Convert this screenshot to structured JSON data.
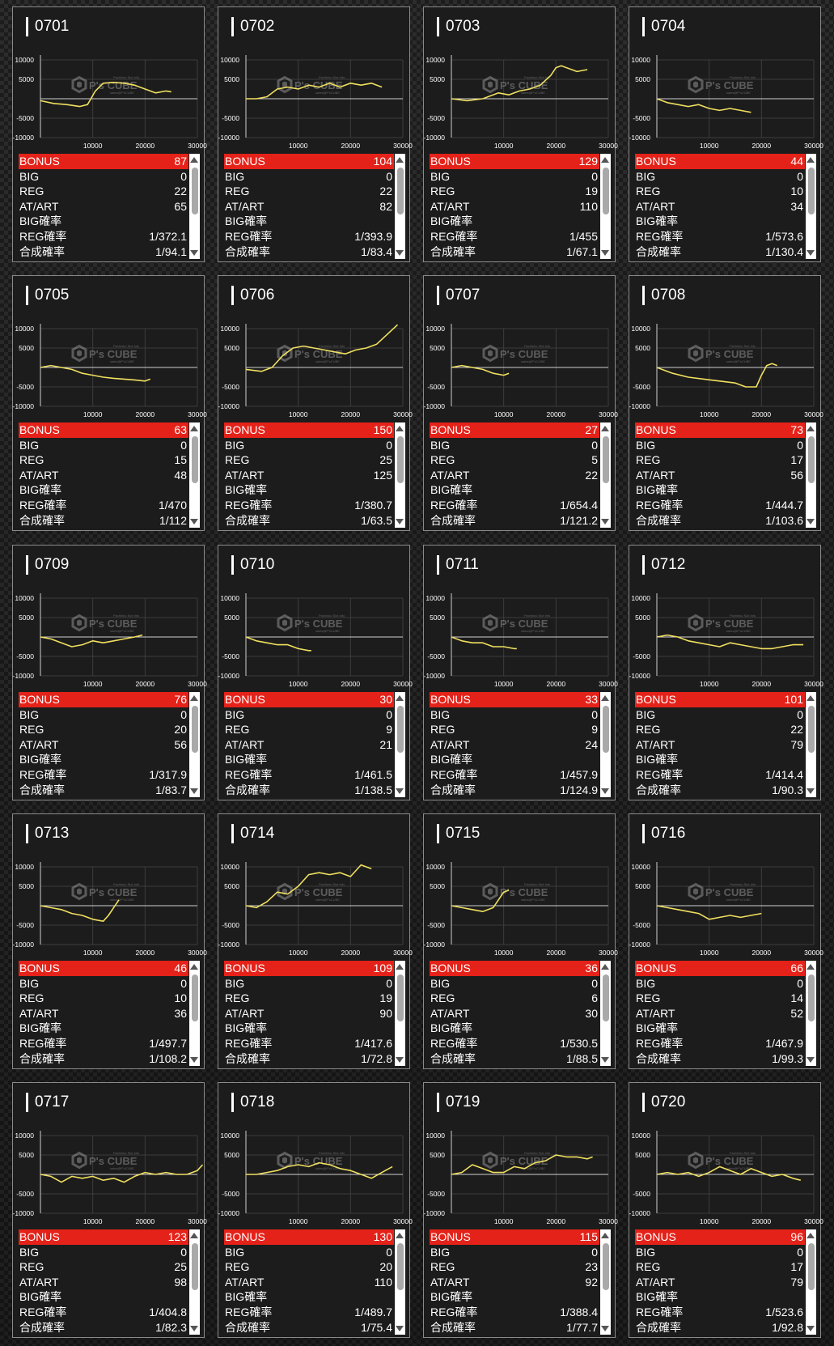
{
  "watermark": {
    "brand": "P's CUBE",
    "sub1": "Pachinko Slot Info",
    "sub2": "sales@P'sCUBE"
  },
  "labels": {
    "bonus": "BONUS",
    "big": "BIG",
    "reg": "REG",
    "at_art": "AT/ART",
    "big_rate": "BIG確率",
    "reg_rate": "REG確率",
    "combined_rate": "合成確率"
  },
  "chart_axes": {
    "y_ticks": [
      "10000",
      "5000",
      "-5000",
      "-10000"
    ],
    "x_ticks": [
      "10000",
      "20000",
      "30000"
    ],
    "xlim": [
      0,
      30000
    ],
    "ylim": [
      -10000,
      10000
    ]
  },
  "colors": {
    "bonus_bar": "#e52219",
    "line": "#f0e060",
    "card_bg": "#1c1c1c"
  },
  "machines": [
    {
      "id": "0701",
      "bonus": "87",
      "big": "0",
      "reg": "22",
      "at_art": "65",
      "big_rate": "",
      "reg_rate": "1/372.1",
      "combined_rate": "1/94.1"
    },
    {
      "id": "0702",
      "bonus": "104",
      "big": "0",
      "reg": "22",
      "at_art": "82",
      "big_rate": "",
      "reg_rate": "1/393.9",
      "combined_rate": "1/83.4"
    },
    {
      "id": "0703",
      "bonus": "129",
      "big": "0",
      "reg": "19",
      "at_art": "110",
      "big_rate": "",
      "reg_rate": "1/455",
      "combined_rate": "1/67.1"
    },
    {
      "id": "0704",
      "bonus": "44",
      "big": "0",
      "reg": "10",
      "at_art": "34",
      "big_rate": "",
      "reg_rate": "1/573.6",
      "combined_rate": "1/130.4"
    },
    {
      "id": "0705",
      "bonus": "63",
      "big": "0",
      "reg": "15",
      "at_art": "48",
      "big_rate": "",
      "reg_rate": "1/470",
      "combined_rate": "1/112"
    },
    {
      "id": "0706",
      "bonus": "150",
      "big": "0",
      "reg": "25",
      "at_art": "125",
      "big_rate": "",
      "reg_rate": "1/380.7",
      "combined_rate": "1/63.5"
    },
    {
      "id": "0707",
      "bonus": "27",
      "big": "0",
      "reg": "5",
      "at_art": "22",
      "big_rate": "",
      "reg_rate": "1/654.4",
      "combined_rate": "1/121.2"
    },
    {
      "id": "0708",
      "bonus": "73",
      "big": "0",
      "reg": "17",
      "at_art": "56",
      "big_rate": "",
      "reg_rate": "1/444.7",
      "combined_rate": "1/103.6"
    },
    {
      "id": "0709",
      "bonus": "76",
      "big": "0",
      "reg": "20",
      "at_art": "56",
      "big_rate": "",
      "reg_rate": "1/317.9",
      "combined_rate": "1/83.7"
    },
    {
      "id": "0710",
      "bonus": "30",
      "big": "0",
      "reg": "9",
      "at_art": "21",
      "big_rate": "",
      "reg_rate": "1/461.5",
      "combined_rate": "1/138.5"
    },
    {
      "id": "0711",
      "bonus": "33",
      "big": "0",
      "reg": "9",
      "at_art": "24",
      "big_rate": "",
      "reg_rate": "1/457.9",
      "combined_rate": "1/124.9"
    },
    {
      "id": "0712",
      "bonus": "101",
      "big": "0",
      "reg": "22",
      "at_art": "79",
      "big_rate": "",
      "reg_rate": "1/414.4",
      "combined_rate": "1/90.3"
    },
    {
      "id": "0713",
      "bonus": "46",
      "big": "0",
      "reg": "10",
      "at_art": "36",
      "big_rate": "",
      "reg_rate": "1/497.7",
      "combined_rate": "1/108.2"
    },
    {
      "id": "0714",
      "bonus": "109",
      "big": "0",
      "reg": "19",
      "at_art": "90",
      "big_rate": "",
      "reg_rate": "1/417.6",
      "combined_rate": "1/72.8"
    },
    {
      "id": "0715",
      "bonus": "36",
      "big": "0",
      "reg": "6",
      "at_art": "30",
      "big_rate": "",
      "reg_rate": "1/530.5",
      "combined_rate": "1/88.5"
    },
    {
      "id": "0716",
      "bonus": "66",
      "big": "0",
      "reg": "14",
      "at_art": "52",
      "big_rate": "",
      "reg_rate": "1/467.9",
      "combined_rate": "1/99.3"
    },
    {
      "id": "0717",
      "bonus": "123",
      "big": "0",
      "reg": "25",
      "at_art": "98",
      "big_rate": "",
      "reg_rate": "1/404.8",
      "combined_rate": "1/82.3"
    },
    {
      "id": "0718",
      "bonus": "130",
      "big": "0",
      "reg": "20",
      "at_art": "110",
      "big_rate": "",
      "reg_rate": "1/489.7",
      "combined_rate": "1/75.4"
    },
    {
      "id": "0719",
      "bonus": "115",
      "big": "0",
      "reg": "23",
      "at_art": "92",
      "big_rate": "",
      "reg_rate": "1/388.4",
      "combined_rate": "1/77.7"
    },
    {
      "id": "0720",
      "bonus": "96",
      "big": "0",
      "reg": "17",
      "at_art": "79",
      "big_rate": "",
      "reg_rate": "1/523.6",
      "combined_rate": "1/92.8"
    }
  ],
  "chart_data": [
    {
      "type": "line",
      "id": "0701",
      "series": [
        {
          "x": [
            0,
            2500,
            5000,
            7500,
            9000,
            10500,
            12000,
            14000,
            16000,
            18000,
            20000,
            22000,
            24000,
            25000
          ],
          "y": [
            -500,
            -1200,
            -1500,
            -2000,
            -1500,
            2000,
            4000,
            4200,
            4000,
            3500,
            2500,
            1500,
            2000,
            1800
          ]
        }
      ]
    },
    {
      "type": "line",
      "id": "0702",
      "series": [
        {
          "x": [
            0,
            2000,
            4000,
            6000,
            8000,
            10000,
            12000,
            14000,
            16000,
            18000,
            20000,
            22000,
            24000,
            26000
          ],
          "y": [
            0,
            0,
            500,
            2500,
            3000,
            2500,
            3500,
            3000,
            4000,
            3000,
            4000,
            3500,
            4000,
            3000
          ]
        }
      ]
    },
    {
      "type": "line",
      "id": "0703",
      "series": [
        {
          "x": [
            0,
            3000,
            6000,
            9000,
            11000,
            13000,
            15000,
            17000,
            19000,
            20000,
            21000,
            22000,
            24000,
            26000
          ],
          "y": [
            0,
            -500,
            0,
            1500,
            1000,
            2000,
            2500,
            3500,
            6000,
            8000,
            8500,
            8000,
            7000,
            7500
          ]
        }
      ]
    },
    {
      "type": "line",
      "id": "0704",
      "series": [
        {
          "x": [
            0,
            2000,
            4000,
            6000,
            8000,
            10000,
            12000,
            14000,
            16000,
            18000
          ],
          "y": [
            0,
            -1000,
            -1500,
            -2000,
            -1500,
            -2500,
            -3000,
            -2500,
            -3000,
            -3500
          ]
        }
      ]
    },
    {
      "type": "line",
      "id": "0705",
      "series": [
        {
          "x": [
            0,
            2000,
            4000,
            6000,
            8000,
            10000,
            12000,
            14000,
            16000,
            18000,
            20000,
            21000
          ],
          "y": [
            0,
            500,
            0,
            -500,
            -1500,
            -2000,
            -2500,
            -2800,
            -3000,
            -3200,
            -3500,
            -3000
          ]
        }
      ]
    },
    {
      "type": "line",
      "id": "0706",
      "series": [
        {
          "x": [
            0,
            3000,
            5000,
            7000,
            9000,
            11000,
            13000,
            15000,
            17000,
            19000,
            21000,
            23000,
            25000,
            27000,
            29000
          ],
          "y": [
            -500,
            -1000,
            0,
            3000,
            5000,
            5500,
            5000,
            4500,
            4000,
            3500,
            4500,
            5000,
            6000,
            8500,
            11000
          ]
        }
      ]
    },
    {
      "type": "line",
      "id": "0707",
      "series": [
        {
          "x": [
            0,
            2000,
            4000,
            6000,
            8000,
            10000,
            11000
          ],
          "y": [
            0,
            500,
            0,
            -500,
            -1500,
            -2000,
            -1500
          ]
        }
      ]
    },
    {
      "type": "line",
      "id": "0708",
      "series": [
        {
          "x": [
            0,
            3000,
            6000,
            9000,
            12000,
            15000,
            17000,
            19000,
            20000,
            21000,
            22000,
            23000
          ],
          "y": [
            0,
            -1500,
            -2500,
            -3000,
            -3500,
            -4000,
            -5000,
            -5000,
            -2000,
            500,
            1000,
            500
          ]
        }
      ]
    },
    {
      "type": "line",
      "id": "0709",
      "series": [
        {
          "x": [
            0,
            2000,
            4000,
            6000,
            8000,
            10000,
            12000,
            14000,
            16000,
            18000,
            19500
          ],
          "y": [
            0,
            -500,
            -1500,
            -2500,
            -2000,
            -1000,
            -1500,
            -1000,
            -500,
            0,
            500
          ]
        }
      ]
    },
    {
      "type": "line",
      "id": "0710",
      "series": [
        {
          "x": [
            0,
            2000,
            4000,
            6000,
            8000,
            10000,
            12000,
            12500
          ],
          "y": [
            0,
            -1000,
            -1500,
            -2000,
            -2000,
            -3000,
            -3500,
            -3500
          ]
        }
      ]
    },
    {
      "type": "line",
      "id": "0711",
      "series": [
        {
          "x": [
            0,
            2000,
            4000,
            6000,
            8000,
            10000,
            12000,
            12500
          ],
          "y": [
            0,
            -1000,
            -1500,
            -1500,
            -2500,
            -2500,
            -3000,
            -3000
          ]
        }
      ]
    },
    {
      "type": "line",
      "id": "0712",
      "series": [
        {
          "x": [
            0,
            2000,
            4000,
            6000,
            8000,
            10000,
            12000,
            14000,
            16000,
            18000,
            20000,
            22000,
            24000,
            26000,
            28000
          ],
          "y": [
            0,
            500,
            0,
            -1000,
            -1500,
            -2000,
            -2500,
            -1500,
            -2000,
            -2500,
            -3000,
            -3000,
            -2500,
            -2000,
            -2000
          ]
        }
      ]
    },
    {
      "type": "line",
      "id": "0713",
      "series": [
        {
          "x": [
            0,
            2000,
            4000,
            6000,
            8000,
            10000,
            12000,
            13000,
            14000,
            15000
          ],
          "y": [
            0,
            -500,
            -1000,
            -2000,
            -2500,
            -3500,
            -4000,
            -2500,
            -500,
            1500
          ]
        }
      ]
    },
    {
      "type": "line",
      "id": "0714",
      "series": [
        {
          "x": [
            0,
            2000,
            4000,
            6000,
            8000,
            10000,
            12000,
            14000,
            16000,
            18000,
            20000,
            22000,
            24000
          ],
          "y": [
            0,
            -500,
            1000,
            3500,
            3000,
            5000,
            8000,
            8500,
            8000,
            8500,
            7500,
            10500,
            9500
          ]
        }
      ]
    },
    {
      "type": "line",
      "id": "0715",
      "series": [
        {
          "x": [
            0,
            2000,
            4000,
            6000,
            8000,
            10000,
            11000
          ],
          "y": [
            0,
            -500,
            -1000,
            -1500,
            -500,
            3500,
            4000
          ]
        }
      ]
    },
    {
      "type": "line",
      "id": "0716",
      "series": [
        {
          "x": [
            0,
            2000,
            4000,
            6000,
            8000,
            10000,
            12000,
            14000,
            16000,
            18000,
            20000
          ],
          "y": [
            0,
            -500,
            -1000,
            -1500,
            -2000,
            -3500,
            -3000,
            -2500,
            -3000,
            -2500,
            -2000
          ]
        }
      ]
    },
    {
      "type": "line",
      "id": "0717",
      "series": [
        {
          "x": [
            0,
            2000,
            4000,
            6000,
            8000,
            10000,
            12000,
            14000,
            16000,
            18000,
            20000,
            22000,
            24000,
            26000,
            28000,
            30000,
            31000
          ],
          "y": [
            0,
            -500,
            -2000,
            -500,
            -1000,
            -500,
            -1500,
            -1000,
            -2000,
            -500,
            500,
            0,
            500,
            0,
            0,
            1000,
            2500
          ]
        }
      ]
    },
    {
      "type": "line",
      "id": "0718",
      "series": [
        {
          "x": [
            0,
            2000,
            4000,
            6000,
            8000,
            10000,
            12000,
            14000,
            16000,
            18000,
            20000,
            22000,
            24000,
            26000,
            28000
          ],
          "y": [
            0,
            0,
            500,
            1000,
            2000,
            2500,
            2000,
            3000,
            2500,
            1500,
            1000,
            0,
            -1000,
            500,
            2000
          ]
        }
      ]
    },
    {
      "type": "line",
      "id": "0719",
      "series": [
        {
          "x": [
            0,
            2000,
            4000,
            6000,
            8000,
            10000,
            12000,
            14000,
            16000,
            18000,
            20000,
            22000,
            24000,
            26000,
            27000
          ],
          "y": [
            0,
            500,
            2500,
            1500,
            500,
            500,
            2000,
            1500,
            3000,
            3500,
            5000,
            4500,
            4500,
            4000,
            4500
          ]
        }
      ]
    },
    {
      "type": "line",
      "id": "0720",
      "series": [
        {
          "x": [
            0,
            2000,
            4000,
            6000,
            8000,
            10000,
            12000,
            14000,
            16000,
            18000,
            20000,
            22000,
            24000,
            26000,
            27500
          ],
          "y": [
            0,
            500,
            0,
            500,
            -500,
            500,
            2000,
            1000,
            0,
            1500,
            500,
            -500,
            0,
            -1000,
            -1500
          ]
        }
      ]
    }
  ]
}
